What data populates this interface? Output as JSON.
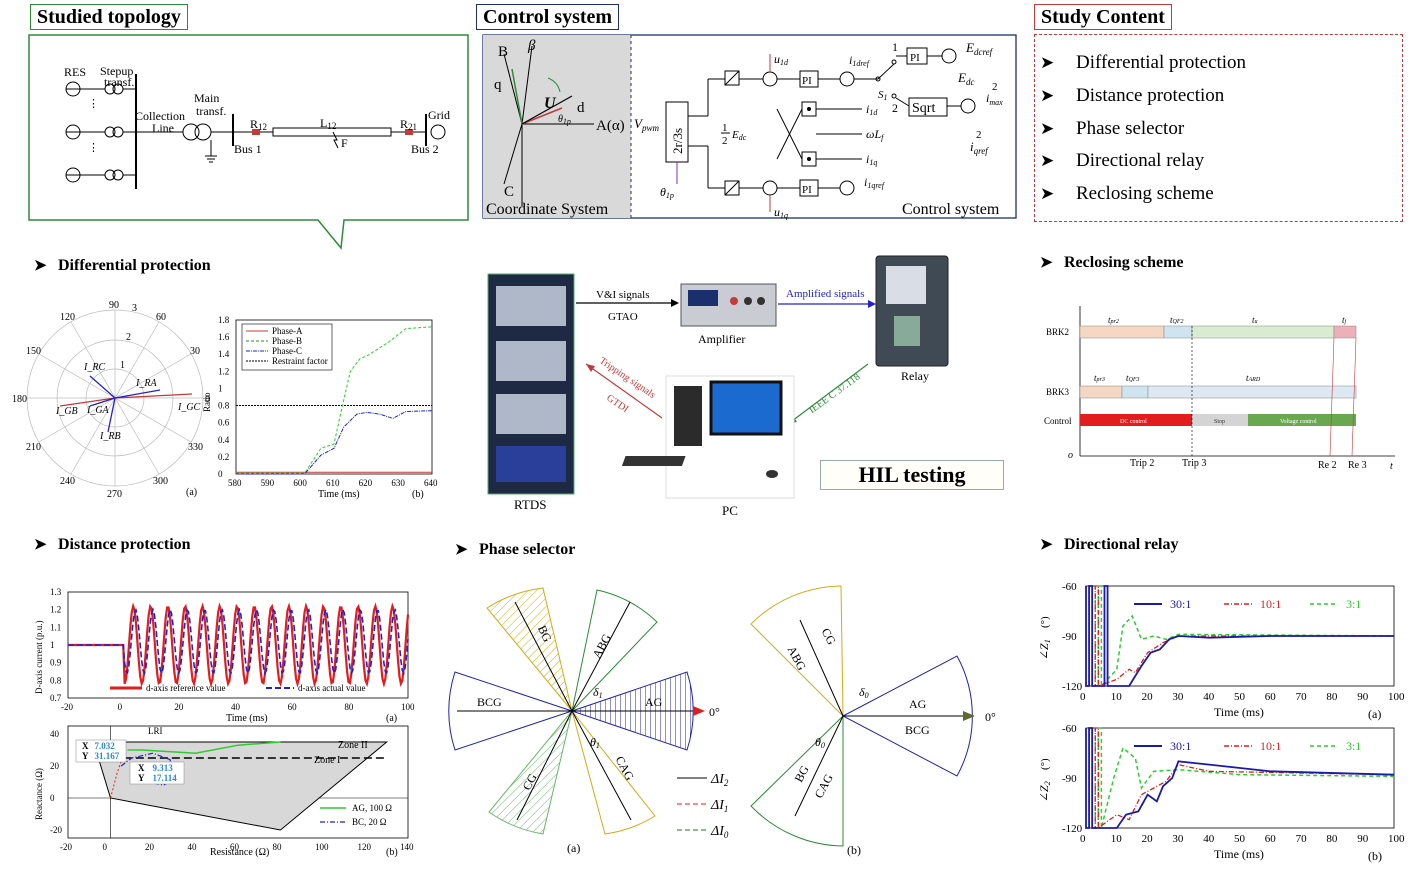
{
  "topology": {
    "title": "Studied topology",
    "labels": {
      "res": "RES",
      "stepup": "Stepup",
      "stepup2": "transf.",
      "main": "Main",
      "main2": "transf.",
      "collection": "Collection",
      "line": "Line",
      "r12": "R",
      "r12sub": "12",
      "l12": "L",
      "l12sub": "12",
      "f": "F",
      "r21": "R",
      "r21sub": "21",
      "grid": "Grid",
      "bus1": "Bus 1",
      "bus2": "Bus 2"
    }
  },
  "control": {
    "title": "Control system",
    "coord_caption": "Coordinate System",
    "ctrl_caption": "Control system",
    "labels": {
      "B": "B",
      "beta": "β",
      "q": "q",
      "U": "U",
      "d": "d",
      "theta": "θ",
      "thetasub": "1p",
      "A": "A(α)",
      "C": "C",
      "vpwm": "V",
      "vpwmsub": "pwm",
      "conv": "2r/3s",
      "theta2": "θ",
      "theta2sub": "1p",
      "u1d": "u",
      "u1dsub": "1d",
      "u1q": "u",
      "u1qsub": "1q",
      "pi": "PI",
      "sqrt": "Sqrt",
      "half": "1",
      "half2": "2",
      "edc": "E",
      "edcsub": "dc",
      "i1dref": "i",
      "i1drefsub": "1dref",
      "i1d": "i",
      "i1dsub": "1d",
      "i1q": "i",
      "i1qsub": "1q",
      "i1qref": "i",
      "i1qrefsub": "1qref",
      "wlf": "ωL",
      "wlfsub": "f",
      "edcref": "E",
      "edcrefsub": "dcref",
      "edc2": "E",
      "edc2sub": "dc",
      "imax": "i",
      "imaxsub": "max",
      "imaxsup": "2",
      "iqref": "i",
      "iqrefsub": "qref",
      "iqrefsup": "2",
      "s1": "S",
      "s1sub": "1",
      "one": "1",
      "two": "2"
    }
  },
  "study": {
    "title": "Study Content",
    "items": [
      "Differential protection",
      "Distance protection",
      "Phase selector",
      "Directional relay",
      "Reclosing scheme"
    ]
  },
  "diff": {
    "heading": "Differential protection",
    "polar": {
      "angles": [
        "90",
        "60",
        "30",
        "0",
        "330",
        "300",
        "270",
        "240",
        "210",
        "180",
        "150",
        "120"
      ],
      "rings": [
        "1",
        "2",
        "3"
      ],
      "vectors": [
        "I_RC",
        "I_RA",
        "I_GB",
        "I_GA",
        "I_GC",
        "I_RB"
      ],
      "caption": "(a)"
    },
    "ratio": {
      "ylabel": "Ratio",
      "xlabel": "Time (ms)",
      "yticks": [
        "0",
        "0.2",
        "0.4",
        "0.6",
        "0.8",
        "1",
        "1.2",
        "1.4",
        "1.6",
        "1.8"
      ],
      "xticks": [
        "580",
        "590",
        "600",
        "610",
        "620",
        "630",
        "640"
      ],
      "legend": [
        "Phase-A",
        "Phase-B",
        "Phase-C",
        "Restraint factor"
      ],
      "caption": "(b)"
    }
  },
  "hil": {
    "title": "HIL testing",
    "labels": {
      "rtds": "RTDS",
      "amplifier": "Amplifier",
      "relay": "Relay",
      "pc": "PC",
      "vi": "V&I signals",
      "gtao": "GTAO",
      "amp": "Amplified signals",
      "trip": "Tripping signals",
      "gtdi": "GTDI",
      "ieee": "IEEE C 37.118"
    }
  },
  "reclosing": {
    "heading": "Reclosing scheme",
    "rows": [
      "BRK2",
      "BRK3",
      "Control"
    ],
    "brk2": [
      "t",
      "pr2",
      "t",
      "QF2",
      "t",
      "u",
      "t",
      "j"
    ],
    "brk3": [
      "t",
      "pr3",
      "t",
      "QF3",
      "t",
      "ARD"
    ],
    "control": [
      "DC control",
      "Stop",
      "Voltage control"
    ],
    "axis": {
      "o": "o",
      "t": "t",
      "trip2": "Trip 2",
      "trip3": "Trip 3",
      "re2": "Re 2",
      "re3": "Re 3"
    }
  },
  "distance": {
    "heading": "Distance protection",
    "top": {
      "ylabel": "D-axis current (p.u.)",
      "xlabel": "Time (ms)",
      "yticks": [
        "0.7",
        "0.8",
        "0.9",
        "1",
        "1.1",
        "1.2",
        "1.3"
      ],
      "xticks": [
        "-20",
        "0",
        "20",
        "40",
        "60",
        "80",
        "100"
      ],
      "legend": [
        "d-axis reference value",
        "d-axis actual value"
      ],
      "caption": "(a)"
    },
    "bottom": {
      "ylabel": "Reactance (Ω)",
      "xlabel": "Resistance (Ω)",
      "yticks": [
        "-20",
        "0",
        "20",
        "40"
      ],
      "xticks": [
        "-20",
        "0",
        "20",
        "40",
        "60",
        "80",
        "100",
        "120",
        "140"
      ],
      "zone2": "Zone II",
      "zone1": "Zone I",
      "lri": "LRI",
      "dt1": [
        "X",
        "7.032",
        "Y",
        "31.167"
      ],
      "dt2": [
        "X",
        "9.313",
        "Y",
        "17.114"
      ],
      "legend": [
        "AG, 100 Ω",
        "BC, 20 Ω"
      ],
      "caption": "(b)"
    }
  },
  "phase": {
    "heading": "Phase selector",
    "a": {
      "labels": [
        "BG",
        "ABG",
        "BCG",
        "AG",
        "CG",
        "CAG"
      ],
      "delta1": "δ",
      "delta1sub": "1",
      "theta1": "θ",
      "theta1sub": "1",
      "zero": "0°",
      "caption": "(a)"
    },
    "b": {
      "labels": [
        "CG",
        "ABG",
        "AG",
        "BCG",
        "BG",
        "CAG"
      ],
      "delta0": "δ",
      "delta0sub": "0",
      "theta0": "θ",
      "theta0sub": "0",
      "zero": "0°",
      "caption": "(b)"
    },
    "legend": [
      "ΔI",
      "2",
      "ΔI",
      "1",
      "ΔI",
      "0"
    ]
  },
  "direction": {
    "heading": "Directional relay",
    "ylabel1": "∠Z",
    "ylabel1sub": "1",
    "ylabel2": "∠Z",
    "ylabel2sub": "2",
    "unit": "(°)",
    "yticks": [
      "-60",
      "-90",
      "-120"
    ],
    "xticks": [
      "0",
      "10",
      "20",
      "30",
      "40",
      "50",
      "60",
      "70",
      "80",
      "90",
      "100"
    ],
    "xlabel": "Time (ms)",
    "legend": [
      "30:1",
      "10:1",
      "3:1"
    ],
    "caption_a": "(a)",
    "caption_b": "(b)"
  },
  "colors": {
    "green": "#2e8b3a",
    "navy": "#1f2f6b",
    "red": "#c23b3b",
    "blue": "#2222cc"
  }
}
